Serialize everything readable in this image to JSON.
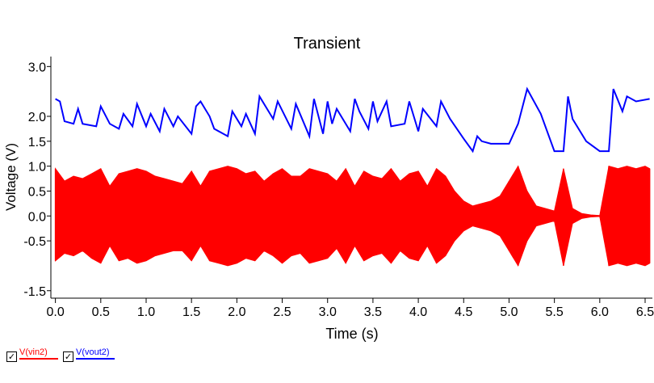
{
  "chart_data": {
    "type": "line",
    "title": "Transient",
    "xlabel": "Time (s)",
    "ylabel": "Voltage (V)",
    "xlim": [
      -0.05,
      6.58
    ],
    "ylim": [
      -1.65,
      3.2
    ],
    "x_ticks": [
      {
        "v": 0.0,
        "label": "0.0"
      },
      {
        "v": 0.5,
        "label": "0.5"
      },
      {
        "v": 1.0,
        "label": "1.0"
      },
      {
        "v": 1.5,
        "label": "1.5"
      },
      {
        "v": 2.0,
        "label": "2.0"
      },
      {
        "v": 2.5,
        "label": "2.5"
      },
      {
        "v": 3.0,
        "label": "3.0"
      },
      {
        "v": 3.5,
        "label": "3.5"
      },
      {
        "v": 4.0,
        "label": "4.0"
      },
      {
        "v": 4.5,
        "label": "4.5"
      },
      {
        "v": 5.0,
        "label": "5.0"
      },
      {
        "v": 5.5,
        "label": "5.5"
      },
      {
        "v": 6.0,
        "label": "6.0"
      },
      {
        "v": 6.5,
        "label": "6.5"
      }
    ],
    "y_ticks": [
      {
        "v": 3.0,
        "label": "3.0"
      },
      {
        "v": 2.0,
        "label": "2.0"
      },
      {
        "v": 1.5,
        "label": "1.5"
      },
      {
        "v": 1.0,
        "label": "1.0"
      },
      {
        "v": 0.5,
        "label": "0.5"
      },
      {
        "v": 0.0,
        "label": "0.0"
      },
      {
        "v": -0.5,
        "label": "-0.5"
      },
      {
        "v": -1.5,
        "label": "-1.5"
      }
    ],
    "grid": false,
    "legend_position": "bottom-left",
    "series": [
      {
        "name": "V(vin2)",
        "color": "#ff0000",
        "kind": "envelope",
        "x": [
          0.0,
          0.1,
          0.2,
          0.3,
          0.4,
          0.5,
          0.6,
          0.7,
          0.8,
          0.9,
          1.0,
          1.1,
          1.2,
          1.3,
          1.4,
          1.5,
          1.6,
          1.7,
          1.8,
          1.9,
          2.0,
          2.1,
          2.2,
          2.3,
          2.4,
          2.5,
          2.6,
          2.7,
          2.8,
          2.9,
          3.0,
          3.1,
          3.2,
          3.3,
          3.4,
          3.5,
          3.6,
          3.7,
          3.8,
          3.9,
          4.0,
          4.1,
          4.2,
          4.3,
          4.4,
          4.5,
          4.6,
          4.7,
          4.8,
          4.9,
          5.0,
          5.1,
          5.2,
          5.3,
          5.4,
          5.5,
          5.6,
          5.7,
          5.8,
          5.9,
          6.0,
          6.1,
          6.2,
          6.3,
          6.4,
          6.5,
          6.55
        ],
        "upper": [
          0.95,
          0.7,
          0.8,
          0.75,
          0.85,
          0.95,
          0.6,
          0.85,
          0.9,
          0.95,
          0.9,
          0.8,
          0.75,
          0.7,
          0.65,
          0.9,
          0.6,
          0.9,
          0.95,
          1.0,
          0.95,
          0.85,
          0.9,
          0.7,
          0.85,
          0.95,
          0.8,
          0.8,
          0.95,
          0.9,
          0.85,
          0.7,
          0.95,
          0.6,
          0.9,
          0.8,
          0.75,
          0.95,
          0.7,
          0.85,
          0.9,
          0.6,
          0.95,
          0.8,
          0.5,
          0.3,
          0.2,
          0.25,
          0.3,
          0.4,
          0.7,
          1.0,
          0.5,
          0.2,
          0.15,
          0.1,
          0.95,
          0.15,
          0.05,
          0.02,
          0.01,
          1.0,
          0.95,
          1.0,
          0.95,
          1.0,
          0.95
        ],
        "lower": [
          -0.9,
          -0.75,
          -0.8,
          -0.7,
          -0.85,
          -0.95,
          -0.6,
          -0.9,
          -0.85,
          -0.95,
          -0.9,
          -0.8,
          -0.75,
          -0.7,
          -0.7,
          -0.9,
          -0.6,
          -0.9,
          -0.95,
          -1.0,
          -0.95,
          -0.85,
          -0.9,
          -0.7,
          -0.8,
          -0.95,
          -0.8,
          -0.75,
          -0.95,
          -0.9,
          -0.85,
          -0.65,
          -0.95,
          -0.6,
          -0.9,
          -0.8,
          -0.75,
          -0.95,
          -0.7,
          -0.85,
          -0.9,
          -0.6,
          -0.95,
          -0.8,
          -0.5,
          -0.3,
          -0.2,
          -0.25,
          -0.3,
          -0.4,
          -0.7,
          -1.0,
          -0.5,
          -0.2,
          -0.15,
          -0.1,
          -1.0,
          -0.15,
          -0.05,
          -0.02,
          -0.01,
          -1.0,
          -0.95,
          -1.0,
          -0.95,
          -1.0,
          -0.95
        ]
      },
      {
        "name": "V(vout2)",
        "color": "#0000ff",
        "kind": "line",
        "x": [
          0.0,
          0.05,
          0.1,
          0.2,
          0.25,
          0.3,
          0.45,
          0.5,
          0.6,
          0.7,
          0.75,
          0.85,
          0.9,
          1.0,
          1.05,
          1.15,
          1.2,
          1.3,
          1.35,
          1.5,
          1.55,
          1.6,
          1.7,
          1.75,
          1.9,
          1.95,
          2.05,
          2.1,
          2.2,
          2.25,
          2.4,
          2.45,
          2.6,
          2.65,
          2.8,
          2.85,
          2.95,
          3.0,
          3.05,
          3.1,
          3.25,
          3.3,
          3.35,
          3.45,
          3.5,
          3.55,
          3.65,
          3.7,
          3.85,
          3.9,
          4.0,
          4.05,
          4.2,
          4.25,
          4.35,
          4.5,
          4.6,
          4.65,
          4.7,
          4.8,
          5.0,
          5.1,
          5.2,
          5.35,
          5.5,
          5.6,
          5.65,
          5.7,
          5.85,
          6.0,
          6.1,
          6.15,
          6.25,
          6.3,
          6.4,
          6.55
        ],
        "y": [
          2.35,
          2.3,
          1.9,
          1.85,
          2.15,
          1.85,
          1.8,
          2.2,
          1.85,
          1.75,
          2.05,
          1.8,
          2.25,
          1.8,
          2.05,
          1.7,
          2.15,
          1.8,
          2.0,
          1.65,
          2.2,
          2.3,
          2.0,
          1.75,
          1.6,
          2.1,
          1.8,
          2.05,
          1.65,
          2.4,
          1.95,
          2.3,
          1.75,
          2.25,
          1.6,
          2.35,
          1.65,
          2.3,
          1.85,
          2.15,
          1.7,
          2.35,
          2.1,
          1.75,
          2.3,
          1.9,
          2.3,
          1.8,
          1.85,
          2.3,
          1.7,
          2.15,
          1.8,
          2.3,
          1.95,
          1.55,
          1.3,
          1.6,
          1.5,
          1.45,
          1.45,
          1.85,
          2.55,
          2.05,
          1.3,
          1.3,
          2.4,
          1.95,
          1.5,
          1.3,
          1.3,
          2.55,
          2.1,
          2.4,
          2.3,
          2.35
        ]
      }
    ]
  }
}
